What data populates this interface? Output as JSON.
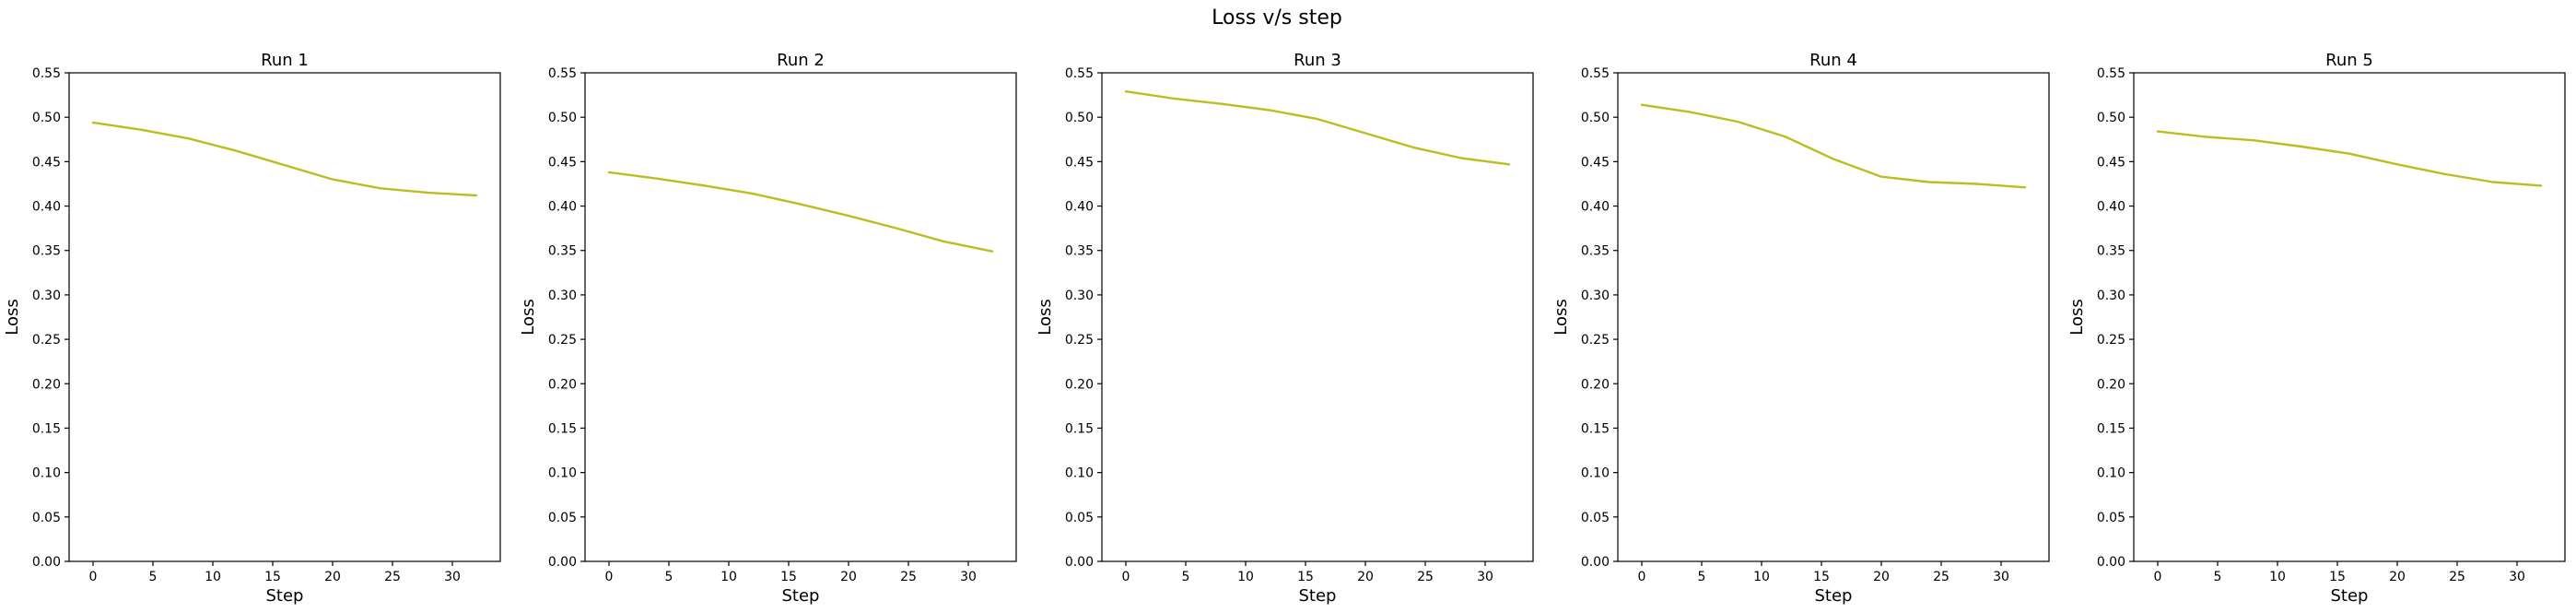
{
  "suptitle": "Loss v/s step",
  "colors": {
    "line": "#bcbd22"
  },
  "chart_data": [
    {
      "type": "line",
      "title": "Run 1",
      "xlabel": "Step",
      "ylabel": "Loss",
      "xlim": [
        -2,
        34
      ],
      "ylim": [
        0,
        0.55
      ],
      "xticks": [
        0,
        5,
        10,
        15,
        20,
        25,
        30
      ],
      "yticks": [
        0.0,
        0.05,
        0.1,
        0.15,
        0.2,
        0.25,
        0.3,
        0.35,
        0.4,
        0.45,
        0.5,
        0.55
      ],
      "x": [
        0,
        4,
        8,
        12,
        16,
        20,
        24,
        28,
        32
      ],
      "y": [
        0.494,
        0.486,
        0.476,
        0.462,
        0.446,
        0.43,
        0.42,
        0.415,
        0.412
      ]
    },
    {
      "type": "line",
      "title": "Run 2",
      "xlabel": "Step",
      "ylabel": "Loss",
      "xlim": [
        -2,
        34
      ],
      "ylim": [
        0,
        0.55
      ],
      "xticks": [
        0,
        5,
        10,
        15,
        20,
        25,
        30
      ],
      "yticks": [
        0.0,
        0.05,
        0.1,
        0.15,
        0.2,
        0.25,
        0.3,
        0.35,
        0.4,
        0.45,
        0.5,
        0.55
      ],
      "x": [
        0,
        4,
        8,
        12,
        16,
        20,
        24,
        28,
        32
      ],
      "y": [
        0.438,
        0.431,
        0.423,
        0.414,
        0.402,
        0.389,
        0.375,
        0.36,
        0.349
      ]
    },
    {
      "type": "line",
      "title": "Run 3",
      "xlabel": "Step",
      "ylabel": "Loss",
      "xlim": [
        -2,
        34
      ],
      "ylim": [
        0,
        0.55
      ],
      "xticks": [
        0,
        5,
        10,
        15,
        20,
        25,
        30
      ],
      "yticks": [
        0.0,
        0.05,
        0.1,
        0.15,
        0.2,
        0.25,
        0.3,
        0.35,
        0.4,
        0.45,
        0.5,
        0.55
      ],
      "x": [
        0,
        4,
        8,
        12,
        16,
        20,
        24,
        28,
        32
      ],
      "y": [
        0.529,
        0.521,
        0.515,
        0.508,
        0.498,
        0.482,
        0.466,
        0.454,
        0.447
      ]
    },
    {
      "type": "line",
      "title": "Run 4",
      "xlabel": "Step",
      "ylabel": "Loss",
      "xlim": [
        -2,
        34
      ],
      "ylim": [
        0,
        0.55
      ],
      "xticks": [
        0,
        5,
        10,
        15,
        20,
        25,
        30
      ],
      "yticks": [
        0.0,
        0.05,
        0.1,
        0.15,
        0.2,
        0.25,
        0.3,
        0.35,
        0.4,
        0.45,
        0.5,
        0.55
      ],
      "x": [
        0,
        4,
        8,
        12,
        16,
        20,
        24,
        28,
        32
      ],
      "y": [
        0.514,
        0.506,
        0.495,
        0.478,
        0.453,
        0.433,
        0.427,
        0.425,
        0.421
      ]
    },
    {
      "type": "line",
      "title": "Run 5",
      "xlabel": "Step",
      "ylabel": "Loss",
      "xlim": [
        -2,
        34
      ],
      "ylim": [
        0,
        0.55
      ],
      "xticks": [
        0,
        5,
        10,
        15,
        20,
        25,
        30
      ],
      "yticks": [
        0.0,
        0.05,
        0.1,
        0.15,
        0.2,
        0.25,
        0.3,
        0.35,
        0.4,
        0.45,
        0.5,
        0.55
      ],
      "x": [
        0,
        4,
        8,
        12,
        16,
        20,
        24,
        28,
        32
      ],
      "y": [
        0.484,
        0.478,
        0.474,
        0.467,
        0.459,
        0.447,
        0.436,
        0.427,
        0.423
      ]
    }
  ]
}
